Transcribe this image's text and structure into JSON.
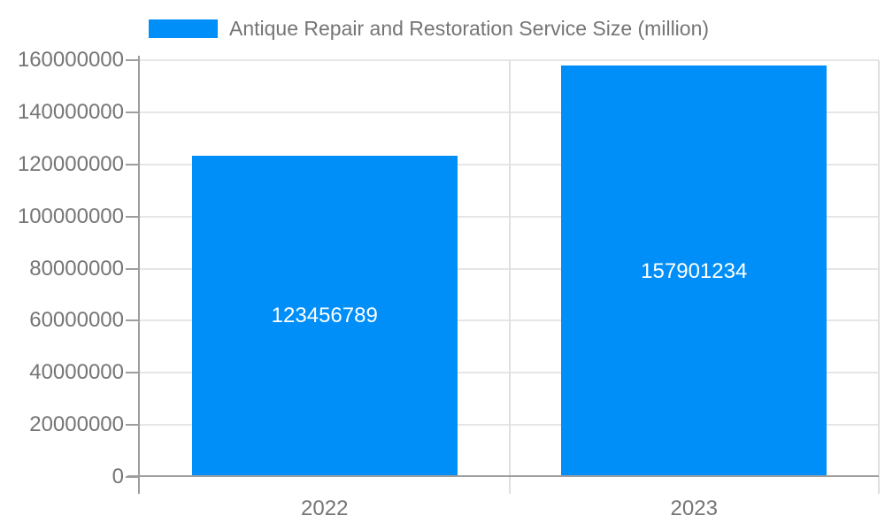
{
  "legend": {
    "label": "Antique Repair and Restoration Service Size (million)"
  },
  "colors": {
    "bar": "#008FF8",
    "axis": "#9e9e9e",
    "gridline": "#e6e6e6",
    "label_text": "#757575",
    "bar_label_text": "#ffffff"
  },
  "chart_data": {
    "type": "bar",
    "title": "Antique Repair and Restoration Service Size (million)",
    "categories": [
      "2022",
      "2023"
    ],
    "values": [
      123456789,
      157901234
    ],
    "value_labels": [
      "123456789",
      "157901234"
    ],
    "xlabel": "",
    "ylabel": "",
    "ylim": [
      0,
      160000000
    ],
    "yticks": [
      0,
      20000000,
      40000000,
      60000000,
      80000000,
      100000000,
      120000000,
      140000000,
      160000000
    ],
    "ytick_labels": [
      "0",
      "20000000",
      "40000000",
      "60000000",
      "80000000",
      "100000000",
      "120000000",
      "140000000",
      "160000000"
    ],
    "grid": "horizontal",
    "legend_position": "top"
  }
}
